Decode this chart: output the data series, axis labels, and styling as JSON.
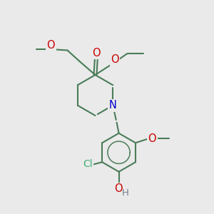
{
  "bg_color": "#eaeaea",
  "bond_color": "#4a7c59",
  "bond_width": 1.5,
  "n_color": "#0000cc",
  "o_color": "#cc0000",
  "cl_color": "#3cb371",
  "h_color": "#708090",
  "figsize": [
    3.0,
    3.0
  ],
  "dpi": 100,
  "xlim": [
    0,
    10
  ],
  "ylim": [
    0,
    10
  ],
  "ring_r": 0.95,
  "benz_r": 0.9,
  "font_size": 10.0
}
